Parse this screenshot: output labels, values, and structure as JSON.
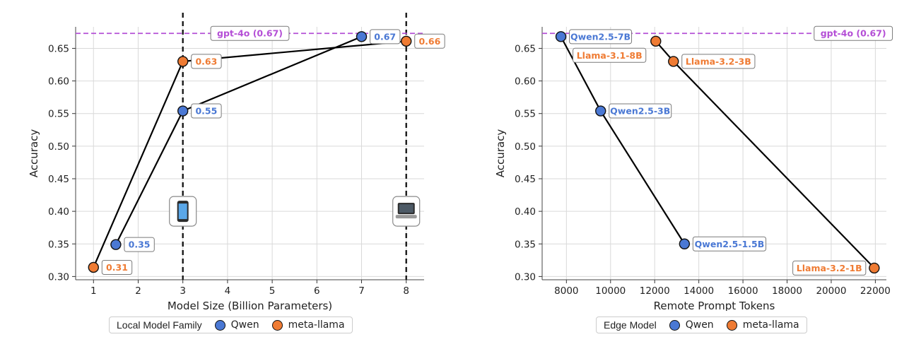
{
  "colors": {
    "qwen": "#4a78d4",
    "llama": "#ef7b33",
    "reference": "#b44fd6",
    "line": "#000000",
    "grid": "#d9d9d9"
  },
  "chart_data": [
    {
      "type": "line",
      "xlabel": "Model Size (Billion Parameters)",
      "ylabel": "Accuracy",
      "xlim": [
        0.6,
        8.4
      ],
      "ylim": [
        0.295,
        0.683
      ],
      "xticks": [
        1,
        2,
        3,
        4,
        5,
        6,
        7,
        8
      ],
      "xtick_labels": [
        "1",
        "2",
        "3",
        "4",
        "5",
        "6",
        "7",
        "8"
      ],
      "yticks": [
        0.3,
        0.35,
        0.4,
        0.45,
        0.5,
        0.55,
        0.6,
        0.65
      ],
      "ytick_labels": [
        "0.30",
        "0.35",
        "0.40",
        "0.45",
        "0.50",
        "0.55",
        "0.60",
        "0.65"
      ],
      "grid": true,
      "vlines": [
        3,
        8
      ],
      "device_icons": [
        {
          "x": 3,
          "y": 0.4,
          "icon": "phone-icon"
        },
        {
          "x": 8,
          "y": 0.4,
          "icon": "laptop-icon"
        }
      ],
      "reference": {
        "value": 0.673,
        "label": "gpt-4o (0.67)",
        "label_x": 4.5
      },
      "series": [
        {
          "name": "Qwen",
          "color_key": "qwen",
          "points": [
            {
              "x": 1.5,
              "y": 0.349,
              "label": "0.35"
            },
            {
              "x": 3,
              "y": 0.554,
              "label": "0.55"
            },
            {
              "x": 7,
              "y": 0.668,
              "label": "0.67"
            }
          ]
        },
        {
          "name": "meta-llama",
          "color_key": "llama",
          "points": [
            {
              "x": 1,
              "y": 0.314,
              "label": "0.31"
            },
            {
              "x": 3,
              "y": 0.63,
              "label": "0.63"
            },
            {
              "x": 8,
              "y": 0.661,
              "label": "0.66"
            }
          ]
        }
      ],
      "legend": {
        "title": "Local Model Family",
        "position": "bottom-center",
        "entries": [
          "Qwen",
          "meta-llama"
        ]
      }
    },
    {
      "type": "line",
      "xlabel": "Remote Prompt Tokens",
      "ylabel": "Accuracy",
      "xlim": [
        6900,
        22500
      ],
      "ylim": [
        0.295,
        0.683
      ],
      "xticks": [
        8000,
        10000,
        12000,
        14000,
        16000,
        18000,
        20000,
        22000
      ],
      "xtick_labels": [
        "8000",
        "10000",
        "12000",
        "14000",
        "16000",
        "18000",
        "20000",
        "22000"
      ],
      "yticks": [
        0.3,
        0.35,
        0.4,
        0.45,
        0.5,
        0.55,
        0.6,
        0.65
      ],
      "ytick_labels": [
        "0.30",
        "0.35",
        "0.40",
        "0.45",
        "0.50",
        "0.55",
        "0.60",
        "0.65"
      ],
      "grid": true,
      "reference": {
        "value": 0.673,
        "label": "gpt-4o (0.67)",
        "label_x": 21000
      },
      "series": [
        {
          "name": "Qwen",
          "color_key": "qwen",
          "points": [
            {
              "x": 7750,
              "y": 0.668,
              "label": "Qwen2.5-7B",
              "label_pos": "right"
            },
            {
              "x": 9550,
              "y": 0.554,
              "label": "Qwen2.5-3B",
              "label_pos": "right"
            },
            {
              "x": 13350,
              "y": 0.35,
              "label": "Qwen2.5-1.5B",
              "label_pos": "right"
            }
          ]
        },
        {
          "name": "meta-llama",
          "color_key": "llama",
          "points": [
            {
              "x": 12050,
              "y": 0.661,
              "label": "Llama-3.1-8B",
              "label_pos": "below-left"
            },
            {
              "x": 12850,
              "y": 0.63,
              "label": "Llama-3.2-3B",
              "label_pos": "right"
            },
            {
              "x": 21950,
              "y": 0.313,
              "label": "Llama-3.2-1B",
              "label_pos": "left"
            }
          ]
        }
      ],
      "legend": {
        "title": "Edge Model",
        "position": "bottom-center",
        "entries": [
          "Qwen",
          "meta-llama"
        ]
      }
    }
  ]
}
